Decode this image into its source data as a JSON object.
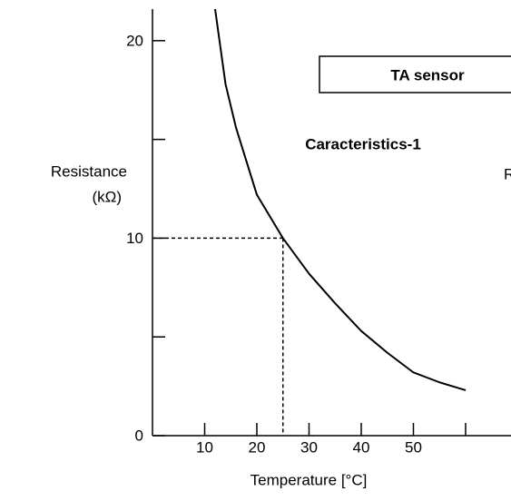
{
  "chart_data": {
    "type": "line",
    "title": "Caracteristics-1",
    "annotations": [
      "TA sensor",
      "R"
    ],
    "xlabel": "Temperature [°C]",
    "ylabel": [
      "Resistance",
      "(kΩ)"
    ],
    "x": [
      12,
      14,
      16,
      20,
      25,
      30,
      35,
      40,
      45,
      50,
      55,
      60
    ],
    "series": [
      {
        "color": "#000000",
        "values": [
          21.6,
          17.8,
          15.6,
          12.2,
          10.0,
          8.2,
          6.7,
          5.3,
          4.2,
          3.2,
          2.7,
          2.3
        ]
      }
    ],
    "reference": {
      "x": 25,
      "y": 10
    },
    "xlim": [
      0,
      68.7
    ],
    "ylim": [
      0,
      21.6
    ],
    "xticks": [
      10,
      20,
      30,
      40,
      50,
      {
        "value": 60,
        "label": null
      }
    ],
    "yticks": [
      0,
      {
        "value": 5,
        "label": null
      },
      10,
      {
        "value": 15,
        "label": null
      },
      20
    ]
  }
}
